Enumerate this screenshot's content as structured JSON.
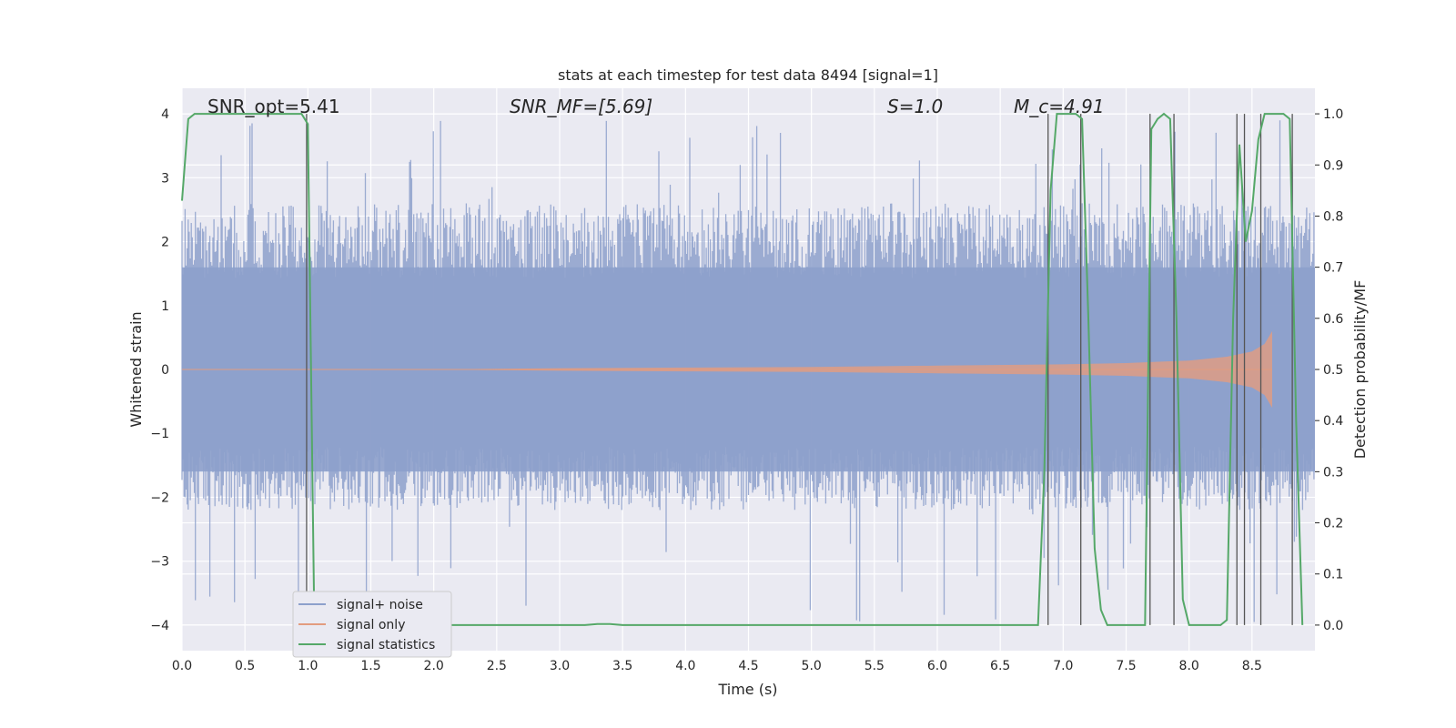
{
  "chart_data": {
    "type": "line",
    "title": "stats at each timestep for test data 8494 [signal=1]",
    "xlabel": "Time (s)",
    "ylabel_left": "Whitened strain",
    "ylabel_right": "Detection probability/MF",
    "xlim": [
      0.0,
      9.0
    ],
    "ylim_left": [
      -4.4,
      4.4
    ],
    "ylim_right": [
      -0.05,
      1.05
    ],
    "x_ticks": [
      "0.0",
      "0.5",
      "1.0",
      "1.5",
      "2.0",
      "2.5",
      "3.0",
      "3.5",
      "4.0",
      "4.5",
      "5.0",
      "5.5",
      "6.0",
      "6.5",
      "7.0",
      "7.5",
      "8.0",
      "8.5"
    ],
    "y_ticks_left": [
      "−4",
      "−3",
      "−2",
      "−1",
      "0",
      "1",
      "2",
      "3",
      "4"
    ],
    "y_ticks_right": [
      "0.0",
      "0.1",
      "0.2",
      "0.3",
      "0.4",
      "0.5",
      "0.6",
      "0.7",
      "0.8",
      "0.9",
      "1.0"
    ],
    "grid": true,
    "legend_position": "lower-left",
    "annotations": {
      "snr_opt": "SNR_opt=5.41",
      "snr_mf": "SNR_MF=[5.69]",
      "s_value": "S=1.0",
      "mc_value": "M_c=4.91"
    },
    "series": [
      {
        "name": "signal+ noise",
        "color": "#8da0cb",
        "description_values": "noise-like whitened strain, amplitude mostly within [-2, 2.5], peaks up to ~3.9 and down to ~-4",
        "approx_envelope": {
          "upper": 2.6,
          "lower": -2.2,
          "peak_max": 3.9,
          "peak_min": -4.0
        }
      },
      {
        "name": "signal only",
        "color": "#e39c7f",
        "chirp_envelope": [
          [
            2.0,
            0.0
          ],
          [
            3.0,
            0.02
          ],
          [
            4.0,
            0.03
          ],
          [
            5.0,
            0.04
          ],
          [
            6.0,
            0.06
          ],
          [
            7.0,
            0.08
          ],
          [
            7.5,
            0.1
          ],
          [
            8.0,
            0.14
          ],
          [
            8.3,
            0.2
          ],
          [
            8.5,
            0.28
          ],
          [
            8.6,
            0.4
          ],
          [
            8.66,
            0.6
          ]
        ]
      },
      {
        "name": "signal statistics",
        "color": "#55a868",
        "x": [
          0.0,
          0.05,
          0.1,
          0.2,
          0.3,
          0.5,
          0.7,
          0.9,
          0.95,
          1.0,
          1.05,
          1.1,
          3.2,
          3.3,
          3.4,
          3.5,
          6.8,
          6.85,
          6.9,
          6.95,
          7.0,
          7.05,
          7.1,
          7.15,
          7.2,
          7.25,
          7.3,
          7.35,
          7.6,
          7.65,
          7.7,
          7.75,
          7.8,
          7.85,
          7.9,
          7.95,
          8.0,
          8.25,
          8.3,
          8.35,
          8.4,
          8.45,
          8.5,
          8.55,
          8.6,
          8.65,
          8.7,
          8.75,
          8.8,
          8.85,
          8.9
        ],
        "values": [
          0.83,
          0.99,
          1.0,
          1.0,
          1.0,
          1.0,
          1.0,
          1.0,
          1.0,
          0.98,
          0.02,
          0.0,
          0.0,
          0.002,
          0.002,
          0.0,
          0.0,
          0.3,
          0.85,
          1.0,
          1.0,
          1.0,
          1.0,
          0.99,
          0.6,
          0.15,
          0.03,
          0.0,
          0.0,
          0.0,
          0.97,
          0.99,
          1.0,
          0.99,
          0.6,
          0.05,
          0.0,
          0.0,
          0.01,
          0.6,
          0.94,
          0.75,
          0.81,
          0.95,
          1.0,
          1.0,
          1.0,
          1.0,
          0.99,
          0.4,
          0.0
        ]
      }
    ],
    "vlines_x": [
      0.99,
      6.88,
      7.14,
      7.69,
      7.88,
      8.38,
      8.44,
      8.57,
      8.82
    ]
  }
}
